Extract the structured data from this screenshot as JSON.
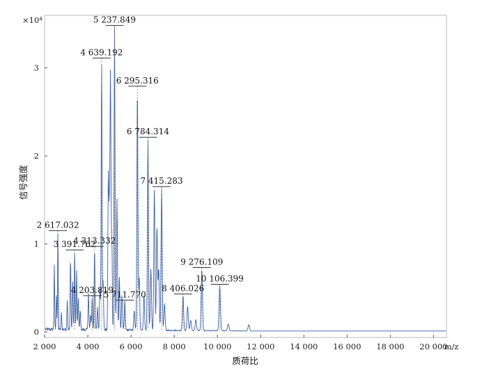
{
  "chart_data": {
    "type": "line",
    "title": "",
    "xlabel": "质荷比",
    "ylabel": "信号强度",
    "x_unit_label": "m/z",
    "y_exponent_label": "×10⁴",
    "xlim": [
      2000,
      20600
    ],
    "ylim": [
      -0.05,
      3.5
    ],
    "x_ticks": [
      2000,
      4000,
      6000,
      8000,
      10000,
      12000,
      14000,
      16000,
      18000,
      20000
    ],
    "x_tick_labels": [
      "2 000",
      "4 000",
      "6 000",
      "8 000",
      "10 000",
      "12 000",
      "14 000",
      "16 000",
      "18 000",
      "20 000"
    ],
    "y_ticks": [
      0,
      1,
      2,
      3
    ],
    "y_tick_labels": [
      "0",
      "1",
      "2",
      "3"
    ],
    "grid": false,
    "line_color": "#3a5ea8",
    "peaks": [
      {
        "mz": 2617.032,
        "label": "2 617.032",
        "intensity": 1.12
      },
      {
        "mz": 3391.762,
        "label": "3 391.762",
        "intensity": 0.9
      },
      {
        "mz": 4203.819,
        "label": "4 203.819",
        "intensity": 0.38
      },
      {
        "mz": 4313.332,
        "label": "4 313.332",
        "intensity": 0.94
      },
      {
        "mz": 4639.192,
        "label": "4 639.192",
        "intensity": 3.08
      },
      {
        "mz": 5237.849,
        "label": "5 237.849",
        "intensity": 3.45
      },
      {
        "mz": 5711.77,
        "label": "5 711.770",
        "intensity": 0.33
      },
      {
        "mz": 6295.316,
        "label": "6 295.316",
        "intensity": 2.76
      },
      {
        "mz": 6784.314,
        "label": "6 784.314",
        "intensity": 2.18
      },
      {
        "mz": 7415.283,
        "label": "7 415.283",
        "intensity": 1.62
      },
      {
        "mz": 8406.026,
        "label": "8 406.026",
        "intensity": 0.4
      },
      {
        "mz": 9276.109,
        "label": "9 276.109",
        "intensity": 0.7
      },
      {
        "mz": 10106.399,
        "label": "10 106.399",
        "intensity": 0.51
      }
    ],
    "extra_peaks": [
      {
        "mz": 2450,
        "intensity": 0.72
      },
      {
        "mz": 2550,
        "intensity": 0.4
      },
      {
        "mz": 2780,
        "intensity": 0.2
      },
      {
        "mz": 3050,
        "intensity": 0.35
      },
      {
        "mz": 3200,
        "intensity": 0.82
      },
      {
        "mz": 3300,
        "intensity": 0.58
      },
      {
        "mz": 3480,
        "intensity": 0.67
      },
      {
        "mz": 3560,
        "intensity": 0.36
      },
      {
        "mz": 3650,
        "intensity": 0.22
      },
      {
        "mz": 4030,
        "intensity": 0.42
      },
      {
        "mz": 4130,
        "intensity": 0.16
      },
      {
        "mz": 4450,
        "intensity": 0.25
      },
      {
        "mz": 4560,
        "intensity": 0.48
      },
      {
        "mz": 4710,
        "intensity": 0.55
      },
      {
        "mz": 4950,
        "intensity": 1.73
      },
      {
        "mz": 5000,
        "intensity": 1.3
      },
      {
        "mz": 5050,
        "intensity": 2.87
      },
      {
        "mz": 5110,
        "intensity": 1.1
      },
      {
        "mz": 5350,
        "intensity": 1.49
      },
      {
        "mz": 5460,
        "intensity": 0.62
      },
      {
        "mz": 5580,
        "intensity": 0.4
      },
      {
        "mz": 6150,
        "intensity": 0.22
      },
      {
        "mz": 6380,
        "intensity": 0.6
      },
      {
        "mz": 6600,
        "intensity": 0.4
      },
      {
        "mz": 6920,
        "intensity": 0.7
      },
      {
        "mz": 7080,
        "intensity": 1.6
      },
      {
        "mz": 7200,
        "intensity": 1.17
      },
      {
        "mz": 7280,
        "intensity": 0.7
      },
      {
        "mz": 7550,
        "intensity": 0.3
      },
      {
        "mz": 8620,
        "intensity": 0.28
      },
      {
        "mz": 8760,
        "intensity": 0.12
      },
      {
        "mz": 9000,
        "intensity": 0.12
      },
      {
        "mz": 10500,
        "intensity": 0.08
      },
      {
        "mz": 11450,
        "intensity": 0.07
      }
    ]
  }
}
